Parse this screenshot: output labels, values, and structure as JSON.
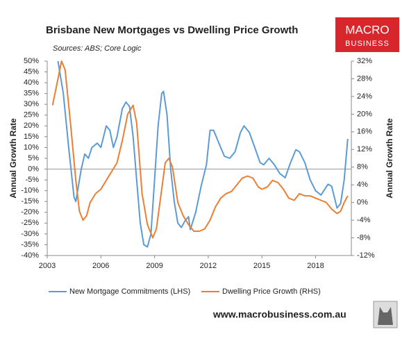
{
  "chart_data": {
    "type": "line",
    "title": "Brisbane New Mortgages vs Dwelling Price Growth",
    "subtitle": "Sources: ABS; Core Logic",
    "y_label": "Annual Growth Rate",
    "y2_label": "Annual Growth Rate",
    "xlim": [
      2003,
      2020
    ],
    "xticks": [
      2003,
      2006,
      2009,
      2012,
      2015,
      2018
    ],
    "ylim": [
      -40,
      50
    ],
    "yticks": [
      {
        "value": -40,
        "label": "-40%"
      },
      {
        "value": -35,
        "label": "-35%"
      },
      {
        "value": -30,
        "label": "-30%"
      },
      {
        "value": -25,
        "label": "-25%"
      },
      {
        "value": -20,
        "label": "-20%"
      },
      {
        "value": -15,
        "label": "-15%"
      },
      {
        "value": -10,
        "label": "-10%"
      },
      {
        "value": -5,
        "label": "-5%"
      },
      {
        "value": 0,
        "label": "0%"
      },
      {
        "value": 5,
        "label": "5%"
      },
      {
        "value": 10,
        "label": "10%"
      },
      {
        "value": 15,
        "label": "15%"
      },
      {
        "value": 20,
        "label": "20%"
      },
      {
        "value": 25,
        "label": "25%"
      },
      {
        "value": 30,
        "label": "30%"
      },
      {
        "value": 35,
        "label": "35%"
      },
      {
        "value": 40,
        "label": "40%"
      },
      {
        "value": 45,
        "label": "45%"
      },
      {
        "value": 50,
        "label": "50%"
      }
    ],
    "y2lim": [
      -12,
      32
    ],
    "y2ticks": [
      {
        "value": -12,
        "label": "-12%"
      },
      {
        "value": -8,
        "label": "-8%"
      },
      {
        "value": -4,
        "label": "-4%"
      },
      {
        "value": 0,
        "label": "0%"
      },
      {
        "value": 4,
        "label": "4%"
      },
      {
        "value": 8,
        "label": "8%"
      },
      {
        "value": 12,
        "label": "12%"
      },
      {
        "value": 16,
        "label": "16%"
      },
      {
        "value": 20,
        "label": "20%"
      },
      {
        "value": 24,
        "label": "24%"
      },
      {
        "value": 28,
        "label": "28%"
      },
      {
        "value": 32,
        "label": "32%"
      }
    ],
    "series": [
      {
        "name": "New Mortgage Commitments (LHS)",
        "color": "#5b9bd5",
        "x": [
          2003.6,
          2003.9,
          2004.2,
          2004.5,
          2004.6,
          2004.9,
          2005.1,
          2005.3,
          2005.5,
          2005.8,
          2006.0,
          2006.3,
          2006.5,
          2006.7,
          2006.9,
          2007.2,
          2007.4,
          2007.6,
          2007.8,
          2008.0,
          2008.2,
          2008.4,
          2008.6,
          2008.8,
          2009.0,
          2009.2,
          2009.4,
          2009.5,
          2009.7,
          2009.9,
          2010.1,
          2010.3,
          2010.5,
          2010.7,
          2010.9,
          2011.0,
          2011.3,
          2011.6,
          2011.9,
          2012.1,
          2012.3,
          2012.6,
          2012.9,
          2013.2,
          2013.5,
          2013.8,
          2014.0,
          2014.3,
          2014.6,
          2014.9,
          2015.1,
          2015.4,
          2015.7,
          2016.0,
          2016.3,
          2016.6,
          2016.9,
          2017.1,
          2017.4,
          2017.7,
          2018.0,
          2018.3,
          2018.7,
          2018.9,
          2019.2,
          2019.4,
          2019.6,
          2019.8
        ],
        "values": [
          50,
          35,
          10,
          -13,
          -15,
          0,
          7,
          5,
          10,
          12,
          10,
          20,
          18,
          10,
          15,
          28,
          31,
          29,
          15,
          -5,
          -25,
          -35,
          -36,
          -30,
          -5,
          20,
          35,
          36,
          25,
          0,
          -15,
          -25,
          -27,
          -24,
          -22,
          -28,
          -20,
          -8,
          2,
          18,
          18,
          12,
          6,
          5,
          8,
          17,
          20,
          17,
          10,
          3,
          2,
          5,
          2,
          -2,
          -4,
          3,
          9,
          8,
          3,
          -5,
          -10,
          -12,
          -7,
          -8,
          -18,
          -16,
          -5,
          14
        ]
      },
      {
        "name": "Dwelling Price Growth (RHS)",
        "color": "#ed7d31",
        "axis": "y2",
        "x": [
          2003.3,
          2003.6,
          2003.8,
          2004.0,
          2004.3,
          2004.6,
          2004.8,
          2005.0,
          2005.2,
          2005.4,
          2005.7,
          2006.0,
          2006.3,
          2006.6,
          2006.9,
          2007.2,
          2007.5,
          2007.8,
          2008.0,
          2008.3,
          2008.6,
          2008.9,
          2009.1,
          2009.4,
          2009.6,
          2009.8,
          2010.0,
          2010.3,
          2010.6,
          2010.9,
          2011.2,
          2011.5,
          2011.8,
          2012.1,
          2012.4,
          2012.7,
          2013.0,
          2013.3,
          2013.6,
          2013.9,
          2014.2,
          2014.5,
          2014.8,
          2015.0,
          2015.3,
          2015.6,
          2015.9,
          2016.2,
          2016.5,
          2016.8,
          2017.1,
          2017.4,
          2017.7,
          2018.0,
          2018.3,
          2018.6,
          2018.9,
          2019.2,
          2019.4,
          2019.6,
          2019.8
        ],
        "values": [
          22,
          28,
          32,
          30,
          18,
          5,
          -2,
          -4,
          -3,
          0,
          2,
          3,
          5,
          7,
          9,
          14,
          20,
          22,
          18,
          2,
          -5,
          -8,
          -6,
          3,
          9,
          10,
          8,
          0,
          -3,
          -5,
          -6.5,
          -6.5,
          -6,
          -4,
          -1,
          1,
          2,
          2.5,
          4,
          5.5,
          6,
          5.5,
          3.5,
          3,
          3.5,
          5,
          4.5,
          3,
          1,
          0.5,
          2,
          1.5,
          1.5,
          1,
          0.5,
          0,
          -1.5,
          -2.5,
          -2,
          0,
          1.5
        ]
      }
    ]
  },
  "branding": {
    "logo_top": "MACRO",
    "logo_bottom": "BUSINESS",
    "url": "www.macrobusiness.com.au"
  }
}
